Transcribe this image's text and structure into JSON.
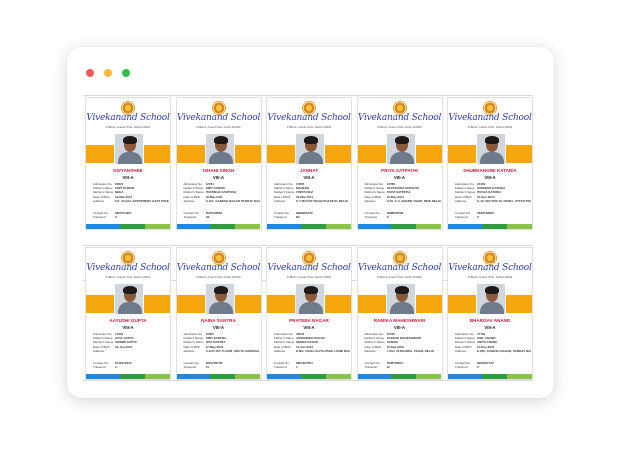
{
  "window": {
    "controls": [
      "close",
      "minimize",
      "maximize"
    ]
  },
  "theme": {
    "band": "#f5a60c",
    "name_color": "#c21e3b",
    "school_color": "#2b3e9a",
    "footer": [
      "#1e88e5",
      "#2e9c3f",
      "#8bc34a"
    ]
  },
  "labels": {
    "admission": "Admission No.",
    "father": "Father's Name",
    "mother": "Mother's Name",
    "dob": "Date of Birth",
    "address": "Address",
    "contact": "Contact No.",
    "transport": "Transport"
  },
  "cards": [
    {
      "school": "Vivekanand School",
      "address_line": "D-Block, Anand Vihar, Delhi-110092",
      "name": "DIVYANSHEE",
      "class": "VIII-A",
      "admission": "22827",
      "father": "AMIT KUMAR",
      "mother": "NEHA",
      "dob": "19-Mar-2011",
      "address": "F/1, 4A BAL APARTMENT, EAST PATEL NAGAR, NEW DELHI",
      "contact": "9650754307",
      "transport": "Z"
    },
    {
      "school": "Vivekanand School",
      "address_line": "D-Block, Anand Vihar, Delhi-110092",
      "name": "ISHANI SINGH",
      "class": "VIII-A",
      "admission": "22764",
      "father": "AMIT KUMAR",
      "mother": "PRATIBHA SANTOSH",
      "dob": "18-Mar-2011",
      "address": "B-101, GANESH NAGAR PANDAV NAGAR, DELHI",
      "contact": "8527948884",
      "transport": "NA"
    },
    {
      "school": "Vivekanand School",
      "address_line": "D-Block, Anand Vihar, Delhi-110092",
      "name": "JANNAT",
      "class": "VIII-A",
      "admission": "17805",
      "father": "MAHESH",
      "mother": "VINITA DEVI",
      "dob": "03-Mar-2011",
      "address": "C-7 MAYUR VIHAR PHASE III, DELHI",
      "contact": "9999281372",
      "transport": "NA"
    },
    {
      "school": "Vivekanand School",
      "address_line": "D-Block, Anand Vihar, Delhi-110092",
      "name": "PRIYA SATPATHI",
      "class": "VIII-A",
      "admission": "22788",
      "father": "DEVASHISH SATPATHI",
      "mother": "TANVI SATPATHI",
      "dob": "13-May-2011",
      "address": "B-35, G-3, ANAND VIHAR, NEW DELHI",
      "contact": "9868843338",
      "transport": "B"
    },
    {
      "school": "Vivekanand School",
      "address_line": "D-Block, Anand Vihar, Delhi-110092",
      "name": "SHUBHANGINI KATARIA",
      "class": "VIII-A",
      "admission": "21309",
      "father": "SANDEEP KATARIA",
      "mother": "POOJA KATARIA",
      "dob": "01-Dec-2010",
      "address": "C-18, SECTOR 19, NOIDA, UTTAR PRADESH",
      "contact": "7838749890",
      "transport": "Z"
    },
    {
      "school": "Vivekanand School",
      "address_line": "D-Block, Anand Vihar, Delhi-110092",
      "name": "AAYUSHI GUPTA",
      "class": "VIII-A",
      "admission": "17004",
      "father": "ATUL GUPTA",
      "mother": "SHIMMI GUPTA",
      "dob": "10-Jun-2010",
      "address": "",
      "contact": "9711912015",
      "transport": "Z"
    },
    {
      "school": "Vivekanand School",
      "address_line": "D-Block, Anand Vihar, Delhi-110092",
      "name": "NAINA SANTRA",
      "class": "VIII-A",
      "admission": "23005",
      "father": "AMIT SANTRA",
      "mother": "RITA SANTRA",
      "dob": "27-May-2010",
      "address": "A-4/34 1ST FLOOR, SOUTH ANARKALI, DELHI",
      "contact": "9810702733",
      "transport": "14"
    },
    {
      "school": "Vivekanand School",
      "address_line": "D-Block, Anand Vihar, Delhi-110092",
      "name": "PRATEEK NAGAR",
      "class": "VIII-A",
      "admission": "18045",
      "father": "JOGENDER NAGAR",
      "mother": "SEEMA NAGAR",
      "dob": "14-Jan-2010",
      "address": "H.NO. 3/129 LALITA PARK LAXMI NAGAR, DELHI",
      "contact": "9891907694",
      "transport": "1"
    },
    {
      "school": "Vivekanand School",
      "address_line": "D-Block, Anand Vihar, Delhi-110092",
      "name": "RAMIKA MAHESHWARI",
      "class": "VIII-A",
      "admission": "22790",
      "father": "RAKESH MAHESHWARI",
      "mother": "SONAM",
      "dob": "15-Sep-2010",
      "address": "C-204, SURAJMAL VIHAR, DELHI",
      "contact": "7838769874",
      "transport": "10"
    },
    {
      "school": "Vivekanand School",
      "address_line": "D-Block, Anand Vihar, Delhi-110092",
      "name": "BHARGAV ANAND",
      "class": "VIII-A",
      "admission": "17760",
      "father": "ANIL ANAND",
      "mother": "ANITA ANAND",
      "dob": "11-Dec-2010",
      "address": "E-265, GANESH NAGAR, PANDAV NAGAR, DELHI",
      "contact": "9990521772",
      "transport": "Z"
    }
  ]
}
